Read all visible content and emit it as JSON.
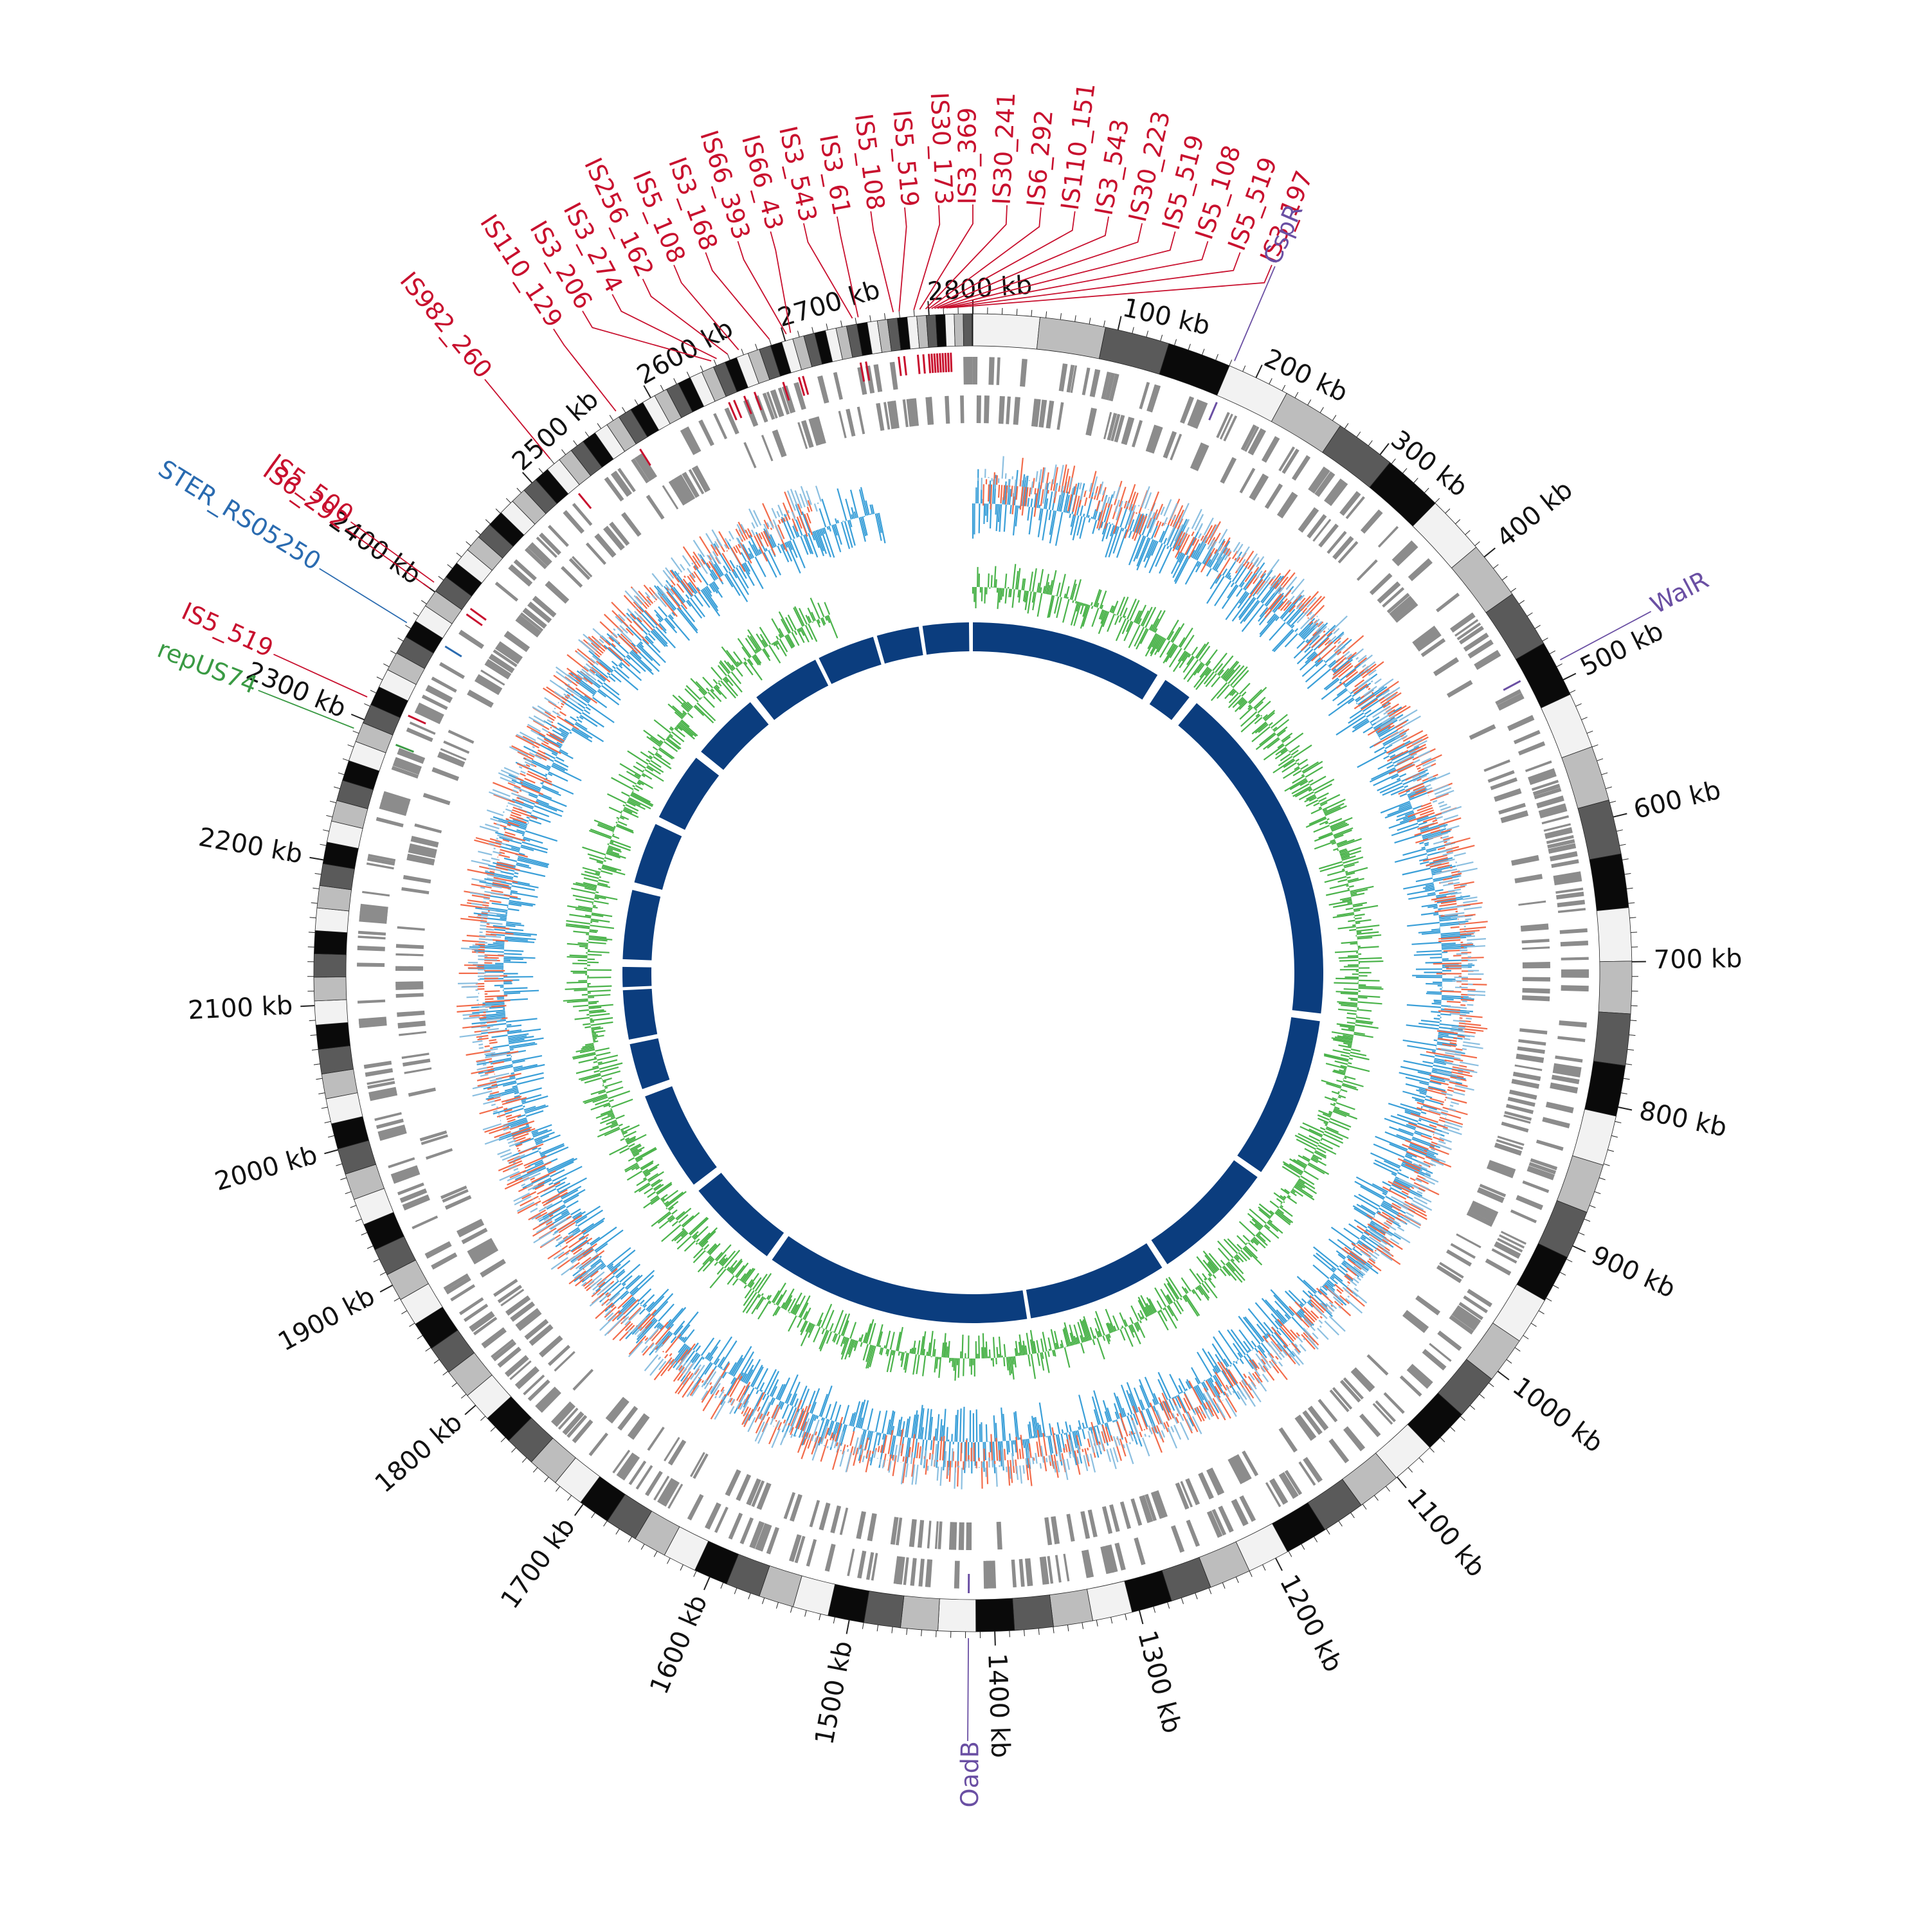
{
  "diagram": {
    "type": "circular-genome-map",
    "genome_length_kb": 2830,
    "tick_step_kb": 100,
    "tick_labels": [
      "100 kb",
      "200 kb",
      "300 kb",
      "400 kb",
      "500 kb",
      "600 kb",
      "700 kb",
      "800 kb",
      "900 kb",
      "1000 kb",
      "1100 kb",
      "1200 kb",
      "1300 kb",
      "1400 kb",
      "1500 kb",
      "1600 kb",
      "1700 kb",
      "1800 kb",
      "1900 kb",
      "2000 kb",
      "2100 kb",
      "2200 kb",
      "2300 kb",
      "2400 kb",
      "2500 kb",
      "2600 kb",
      "2700 kb",
      "2800 kb"
    ]
  },
  "colors": {
    "is_element": "#c8102e",
    "gene_named": "#6a4fa3",
    "ster_gene": "#2a6bb0",
    "plasmid": "#3a9a44",
    "gc_content": "#3a9fd8",
    "gc_skew_pos": "#8bbfe0",
    "gc_skew_neg": "#f26b4a",
    "green_track": "#4bb34b",
    "inner_blocks": "#0b3d7e",
    "cds_grey": "#8c8c8c"
  },
  "features": [
    {
      "label": "IS110_129",
      "kb": 2575,
      "type": "is_element"
    },
    {
      "label": "IS3_206",
      "kb": 2648,
      "type": "is_element"
    },
    {
      "label": "IS3_274",
      "kb": 2652,
      "type": "is_element"
    },
    {
      "label": "IS256_162",
      "kb": 2660,
      "type": "is_element"
    },
    {
      "label": "IS5_108",
      "kb": 2668,
      "type": "is_element"
    },
    {
      "label": "IS3_168",
      "kb": 2690,
      "type": "is_element"
    },
    {
      "label": "IS66_393",
      "kb": 2702,
      "type": "is_element"
    },
    {
      "label": "IS66_43",
      "kb": 2705,
      "type": "is_element"
    },
    {
      "label": "IS3_543",
      "kb": 2748,
      "type": "is_element"
    },
    {
      "label": "IS3_61",
      "kb": 2752,
      "type": "is_element"
    },
    {
      "label": "IS5_108",
      "kb": 2776,
      "type": "is_element"
    },
    {
      "label": "IS5_519",
      "kb": 2780,
      "type": "is_element"
    },
    {
      "label": "IS30_173",
      "kb": 2790,
      "type": "is_element"
    },
    {
      "label": "IS3_369",
      "kb": 2794,
      "type": "is_element"
    },
    {
      "label": "IS30_241",
      "kb": 2798,
      "type": "is_element"
    },
    {
      "label": "IS6_292",
      "kb": 2800,
      "type": "is_element"
    },
    {
      "label": "IS110_151",
      "kb": 2802,
      "type": "is_element"
    },
    {
      "label": "IS3_543",
      "kb": 2804,
      "type": "is_element"
    },
    {
      "label": "IS30_223",
      "kb": 2806,
      "type": "is_element"
    },
    {
      "label": "IS5_519",
      "kb": 2808,
      "type": "is_element"
    },
    {
      "label": "IS5_108",
      "kb": 2810,
      "type": "is_element"
    },
    {
      "label": "IS5_519",
      "kb": 2812,
      "type": "is_element"
    },
    {
      "label": "IS3_197",
      "kb": 2814,
      "type": "is_element"
    },
    {
      "label": "IS982_260",
      "kb": 2520,
      "type": "is_element"
    },
    {
      "label": "IS5_500",
      "kb": 2405,
      "type": "is_element"
    },
    {
      "label": "IS6_292",
      "kb": 2400,
      "type": "is_element"
    },
    {
      "label": "STER_RS05250",
      "kb": 2372,
      "type": "ster_gene"
    },
    {
      "label": "IS5_519",
      "kb": 2315,
      "type": "is_element"
    },
    {
      "label": "repUS74",
      "kb": 2292,
      "type": "plasmid"
    },
    {
      "label": "CspR",
      "kb": 182,
      "type": "gene_named"
    },
    {
      "label": "WalR",
      "kb": 487,
      "type": "gene_named"
    },
    {
      "label": "OadB",
      "kb": 1418,
      "type": "gene_named"
    }
  ]
}
